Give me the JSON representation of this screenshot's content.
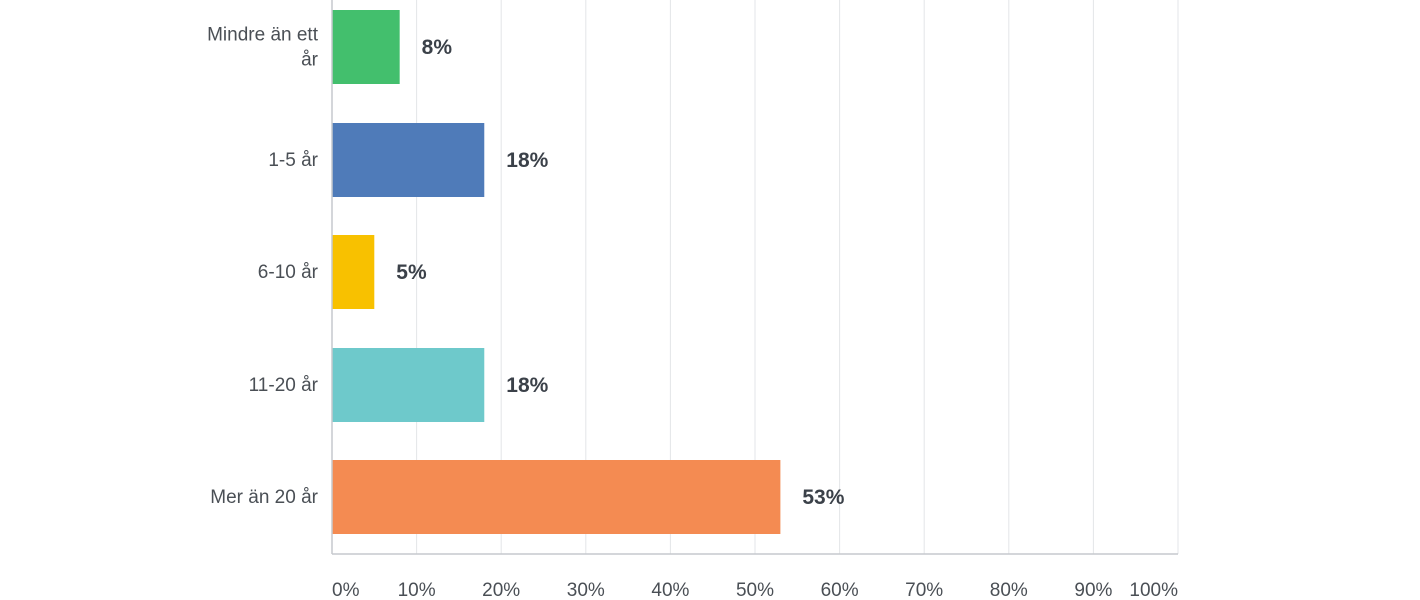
{
  "chart_data": {
    "type": "bar",
    "orientation": "horizontal",
    "categories": [
      "Mindre än ett år",
      "1-5 år",
      "6-10 år",
      "11-20 år",
      "Mer än 20 år"
    ],
    "values": [
      8,
      18,
      5,
      18,
      53
    ],
    "value_labels": [
      "8%",
      "18%",
      "5%",
      "18%",
      "53%"
    ],
    "colors": [
      "#43bf6d",
      "#4f7bb9",
      "#f8c100",
      "#6ec9cb",
      "#f48b52"
    ],
    "xlim": [
      0,
      100
    ],
    "x_ticks": [
      0,
      10,
      20,
      30,
      40,
      50,
      60,
      70,
      80,
      90,
      100
    ],
    "x_tick_labels": [
      "0%",
      "10%",
      "20%",
      "30%",
      "40%",
      "50%",
      "60%",
      "70%",
      "80%",
      "90%",
      "100%"
    ],
    "grid": true,
    "title": "",
    "xlabel": "",
    "ylabel": ""
  }
}
